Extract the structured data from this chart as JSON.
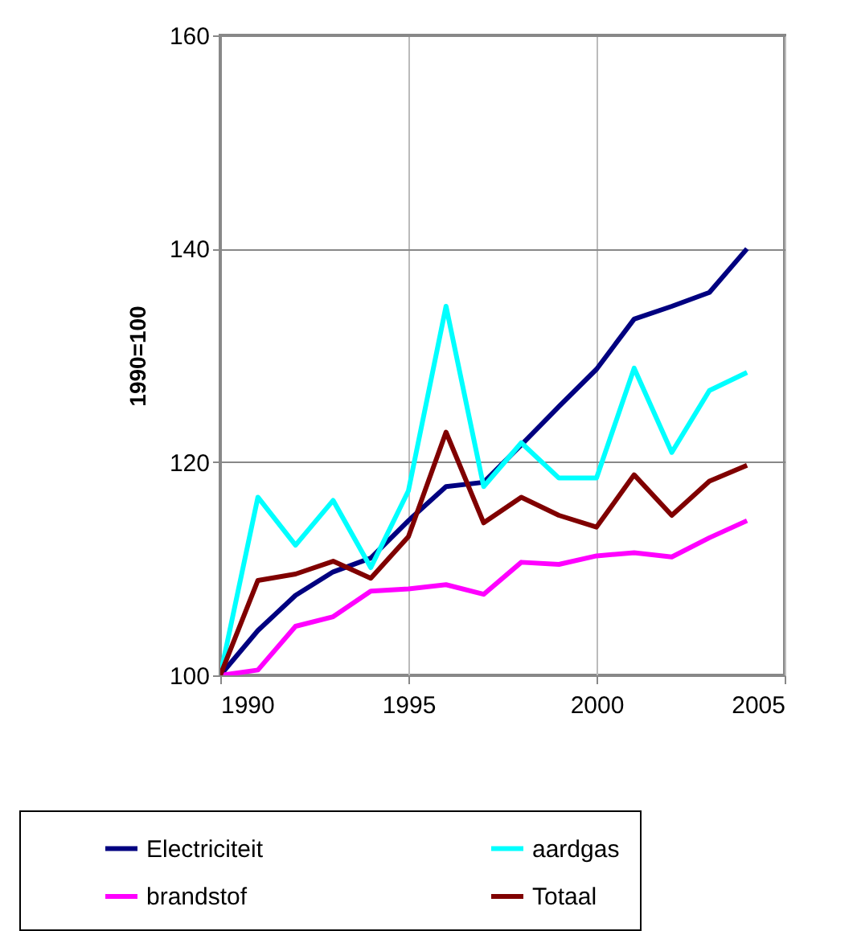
{
  "chart_data": {
    "type": "line",
    "ylabel": "1990=100",
    "x": [
      1990,
      1991,
      1992,
      1993,
      1994,
      1995,
      1996,
      1997,
      1998,
      1999,
      2000,
      2001,
      2002,
      2003,
      2004
    ],
    "series": [
      {
        "name": "Electriciteit",
        "color": "#000080",
        "values": [
          100,
          104.2,
          107.5,
          109.7,
          111,
          114.5,
          117.7,
          118.1,
          121.6,
          125.2,
          128.7,
          133.4,
          134.6,
          135.9,
          140
        ]
      },
      {
        "name": "brandstof",
        "color": "#ff00ff",
        "values": [
          100,
          100.5,
          104.6,
          105.5,
          107.9,
          108.1,
          108.5,
          107.6,
          110.6,
          110.4,
          111.2,
          111.5,
          111.1,
          112.9,
          114.5
        ]
      },
      {
        "name": "aardgas",
        "color": "#00ffff",
        "values": [
          100,
          116.7,
          112.2,
          116.4,
          110.1,
          117.3,
          134.6,
          117.7,
          121.8,
          118.5,
          118.5,
          128.8,
          120.9,
          126.7,
          128.4
        ]
      },
      {
        "name": "Totaal",
        "color": "#800000",
        "values": [
          100,
          108.9,
          109.5,
          110.7,
          109.1,
          113,
          122.8,
          114.3,
          116.7,
          115,
          113.9,
          118.8,
          115,
          118.2,
          119.7
        ]
      }
    ],
    "xlim": [
      1990,
      2005
    ],
    "xticks": [
      1990,
      1995,
      2000,
      2005
    ],
    "ylim": [
      100,
      160
    ],
    "yticks": [
      100,
      120,
      140,
      160
    ],
    "grid": true,
    "legend": "bottom",
    "marker": "none",
    "line_style": "solid"
  }
}
